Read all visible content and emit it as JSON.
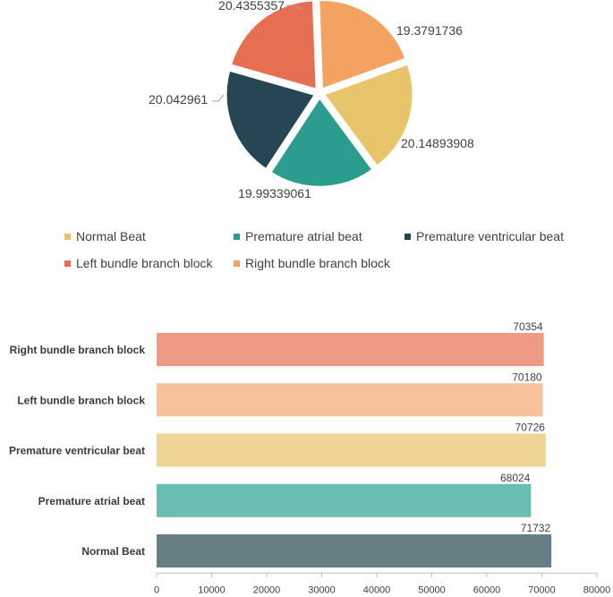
{
  "chart_data": [
    {
      "type": "pie",
      "categories": [
        "Normal Beat",
        "Premature atrial beat",
        "Premature ventricular beat",
        "Left bundle branch block",
        "Right bundle branch block"
      ],
      "values": [
        20.4355357,
        19.3791736,
        20.14893908,
        19.99339061,
        20.042961
      ],
      "labels": [
        "20.4355357",
        "19.3791736",
        "20.14893908",
        "19.99339061",
        "20.042961"
      ],
      "colors": [
        "#E8C46B",
        "#2A9D8F",
        "#264653",
        "#E76F51",
        "#F4A261"
      ],
      "legend": "bottom"
    },
    {
      "type": "bar",
      "orientation": "horizontal",
      "categories": [
        "Right bundle branch block",
        "Left bundle branch block",
        "Premature ventricular beat",
        "Premature atrial beat",
        "Normal Beat"
      ],
      "values": [
        70354,
        70180,
        70726,
        68024,
        71732
      ],
      "labels": [
        "70354",
        "70180",
        "70726",
        "68024",
        "71732"
      ],
      "colors": [
        "#EE9A85",
        "#F7C19C",
        "#EFD495",
        "#6ABDB2",
        "#687E85"
      ],
      "xlim": [
        0,
        80000
      ],
      "xticks": [
        "0",
        "10000",
        "20000",
        "30000",
        "40000",
        "50000",
        "60000",
        "70000",
        "80000"
      ],
      "grid": false
    }
  ]
}
